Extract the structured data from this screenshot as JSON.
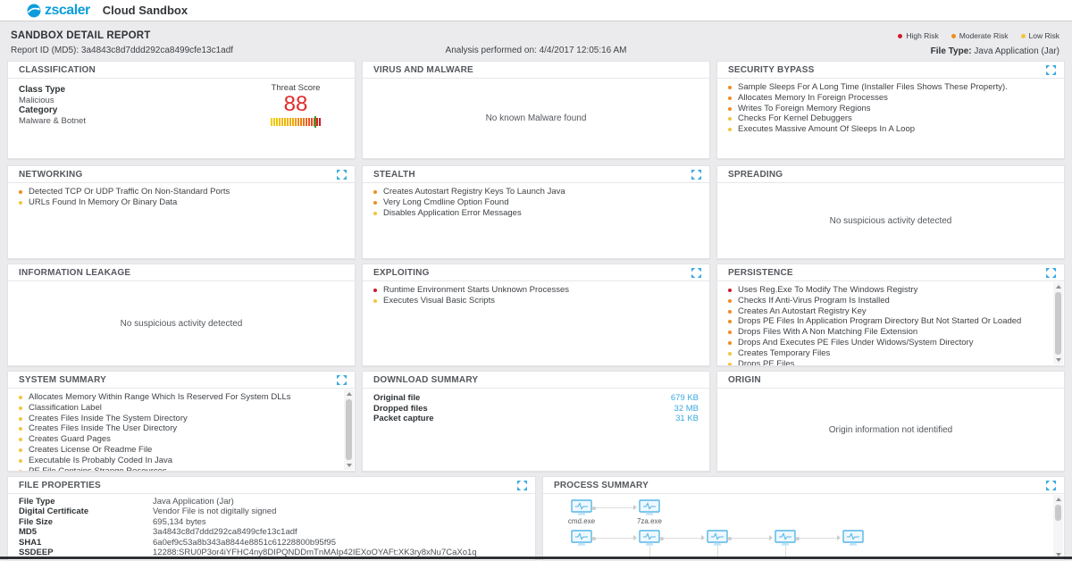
{
  "header": {
    "brand": "zscaler",
    "app_title": "Cloud Sandbox"
  },
  "report_header": {
    "title": "SANDBOX DETAIL REPORT",
    "report_id_label": "Report ID (MD5):",
    "report_id": "3a4843c8d7ddd292ca8499cfe13c1adf",
    "analysis_label": "Analysis performed on:",
    "analysis_datetime": "4/4/2017 12:05:16 AM",
    "file_type_label": "File Type:",
    "file_type": "Java Application (Jar)",
    "legend": [
      {
        "label": "High Risk",
        "risk": "high",
        "color": "#d11a2a"
      },
      {
        "label": "Moderate Risk",
        "risk": "moderate",
        "color": "#f08c1e"
      },
      {
        "label": "Low Risk",
        "risk": "low",
        "color": "#f3c53d"
      }
    ]
  },
  "colors": {
    "accent_blue": "#3aa9e0",
    "threat_red": "#e02b2b",
    "brand_blue": "#0d9ddb"
  },
  "panels": {
    "classification": {
      "title": "CLASSIFICATION",
      "fields": [
        {
          "label": "Class Type",
          "value": "Malicious"
        },
        {
          "label": "Category",
          "value": "Malware & Botnet"
        }
      ],
      "threat_score_label": "Threat Score",
      "threat_score": "88"
    },
    "virus_and_malware": {
      "title": "VIRUS AND MALWARE",
      "empty_message": "No known Malware found"
    },
    "security_bypass": {
      "title": "SECURITY BYPASS",
      "items": [
        {
          "risk": "moderate",
          "text": "Sample Sleeps For A Long Time (Installer Files Shows These Property)."
        },
        {
          "risk": "moderate",
          "text": "Allocates Memory In Foreign Processes"
        },
        {
          "risk": "moderate",
          "text": "Writes To Foreign Memory Regions"
        },
        {
          "risk": "low",
          "text": "Checks For Kernel Debuggers"
        },
        {
          "risk": "low",
          "text": "Executes Massive Amount Of Sleeps In A Loop"
        }
      ]
    },
    "networking": {
      "title": "NETWORKING",
      "items": [
        {
          "risk": "moderate",
          "text": "Detected TCP Or UDP Traffic On Non-Standard Ports"
        },
        {
          "risk": "low",
          "text": "URLs Found In Memory Or Binary Data"
        }
      ]
    },
    "stealth": {
      "title": "STEALTH",
      "items": [
        {
          "risk": "moderate",
          "text": "Creates Autostart Registry Keys To Launch Java"
        },
        {
          "risk": "moderate",
          "text": "Very Long Cmdline Option Found"
        },
        {
          "risk": "low",
          "text": "Disables Application Error Messages"
        }
      ]
    },
    "spreading": {
      "title": "SPREADING",
      "empty_message": "No suspicious activity detected"
    },
    "information_leakage": {
      "title": "INFORMATION LEAKAGE",
      "empty_message": "No suspicious activity detected"
    },
    "exploiting": {
      "title": "EXPLOITING",
      "items": [
        {
          "risk": "high",
          "text": "Runtime Environment Starts Unknown Processes"
        },
        {
          "risk": "low",
          "text": "Executes Visual Basic Scripts"
        }
      ]
    },
    "persistence": {
      "title": "PERSISTENCE",
      "items": [
        {
          "risk": "high",
          "text": "Uses Reg.Exe To Modify The Windows Registry"
        },
        {
          "risk": "moderate",
          "text": "Checks If Anti-Virus Program Is Installed"
        },
        {
          "risk": "moderate",
          "text": "Creates An Autostart Registry Key"
        },
        {
          "risk": "moderate",
          "text": "Drops PE Files In Application Program Directory But Not Started Or Loaded"
        },
        {
          "risk": "moderate",
          "text": "Drops Files With A Non Matching File Extension"
        },
        {
          "risk": "moderate",
          "text": "Drops And Executes PE Files Under Widows/System Directory"
        },
        {
          "risk": "low",
          "text": "Creates Temporary Files"
        },
        {
          "risk": "low",
          "text": "Drops PE Files"
        }
      ]
    },
    "system_summary": {
      "title": "SYSTEM SUMMARY",
      "items": [
        {
          "risk": "low",
          "text": "Allocates Memory Within Range Which Is Reserved For System DLLs"
        },
        {
          "risk": "low",
          "text": "Classification Label"
        },
        {
          "risk": "low",
          "text": "Creates Files Inside The System Directory"
        },
        {
          "risk": "low",
          "text": "Creates Files Inside The User Directory"
        },
        {
          "risk": "low",
          "text": "Creates Guard Pages"
        },
        {
          "risk": "low",
          "text": "Creates License Or Readme File"
        },
        {
          "risk": "low",
          "text": "Executable Is Probably Coded In Java"
        },
        {
          "risk": "low",
          "text": "PE File Contains Strange Resources"
        }
      ]
    },
    "download_summary": {
      "title": "DOWNLOAD SUMMARY",
      "rows": [
        {
          "label": "Original file",
          "value": "679 KB"
        },
        {
          "label": "Dropped files",
          "value": "32 MB"
        },
        {
          "label": "Packet capture",
          "value": "31 KB"
        }
      ]
    },
    "origin": {
      "title": "ORIGIN",
      "empty_message": "Origin information not identified"
    },
    "file_properties": {
      "title": "FILE PROPERTIES",
      "rows": [
        {
          "label": "File Type",
          "value": "Java Application (Jar)"
        },
        {
          "label": "Digital Certificate",
          "value": "Vendor  File is not digitally signed"
        },
        {
          "label": "File Size",
          "value": "695,134 bytes"
        },
        {
          "label": "MD5",
          "value": "3a4843c8d7ddd292ca8499cfe13c1adf"
        },
        {
          "label": "SHA1",
          "value": "6a0ef9c53a8b343a8844e8851c61228800b95f95"
        },
        {
          "label": "SSDEEP",
          "value": "12288:SRU0P3or4iYFHC4ny8DIPQNDDmTnMAIp42IEXoOYAFt:XK3ry8xNu7CaXo1q"
        }
      ]
    },
    "process_summary": {
      "title": "PROCESS SUMMARY",
      "rows": [
        {
          "nodes": [
            {
              "label": "cmd.exe"
            },
            {
              "label": "7za.exe"
            }
          ]
        },
        {
          "nodes": [
            {
              "label": ""
            },
            {
              "label": ""
            },
            {
              "label": ""
            },
            {
              "label": ""
            },
            {
              "label": ""
            }
          ]
        }
      ]
    }
  }
}
